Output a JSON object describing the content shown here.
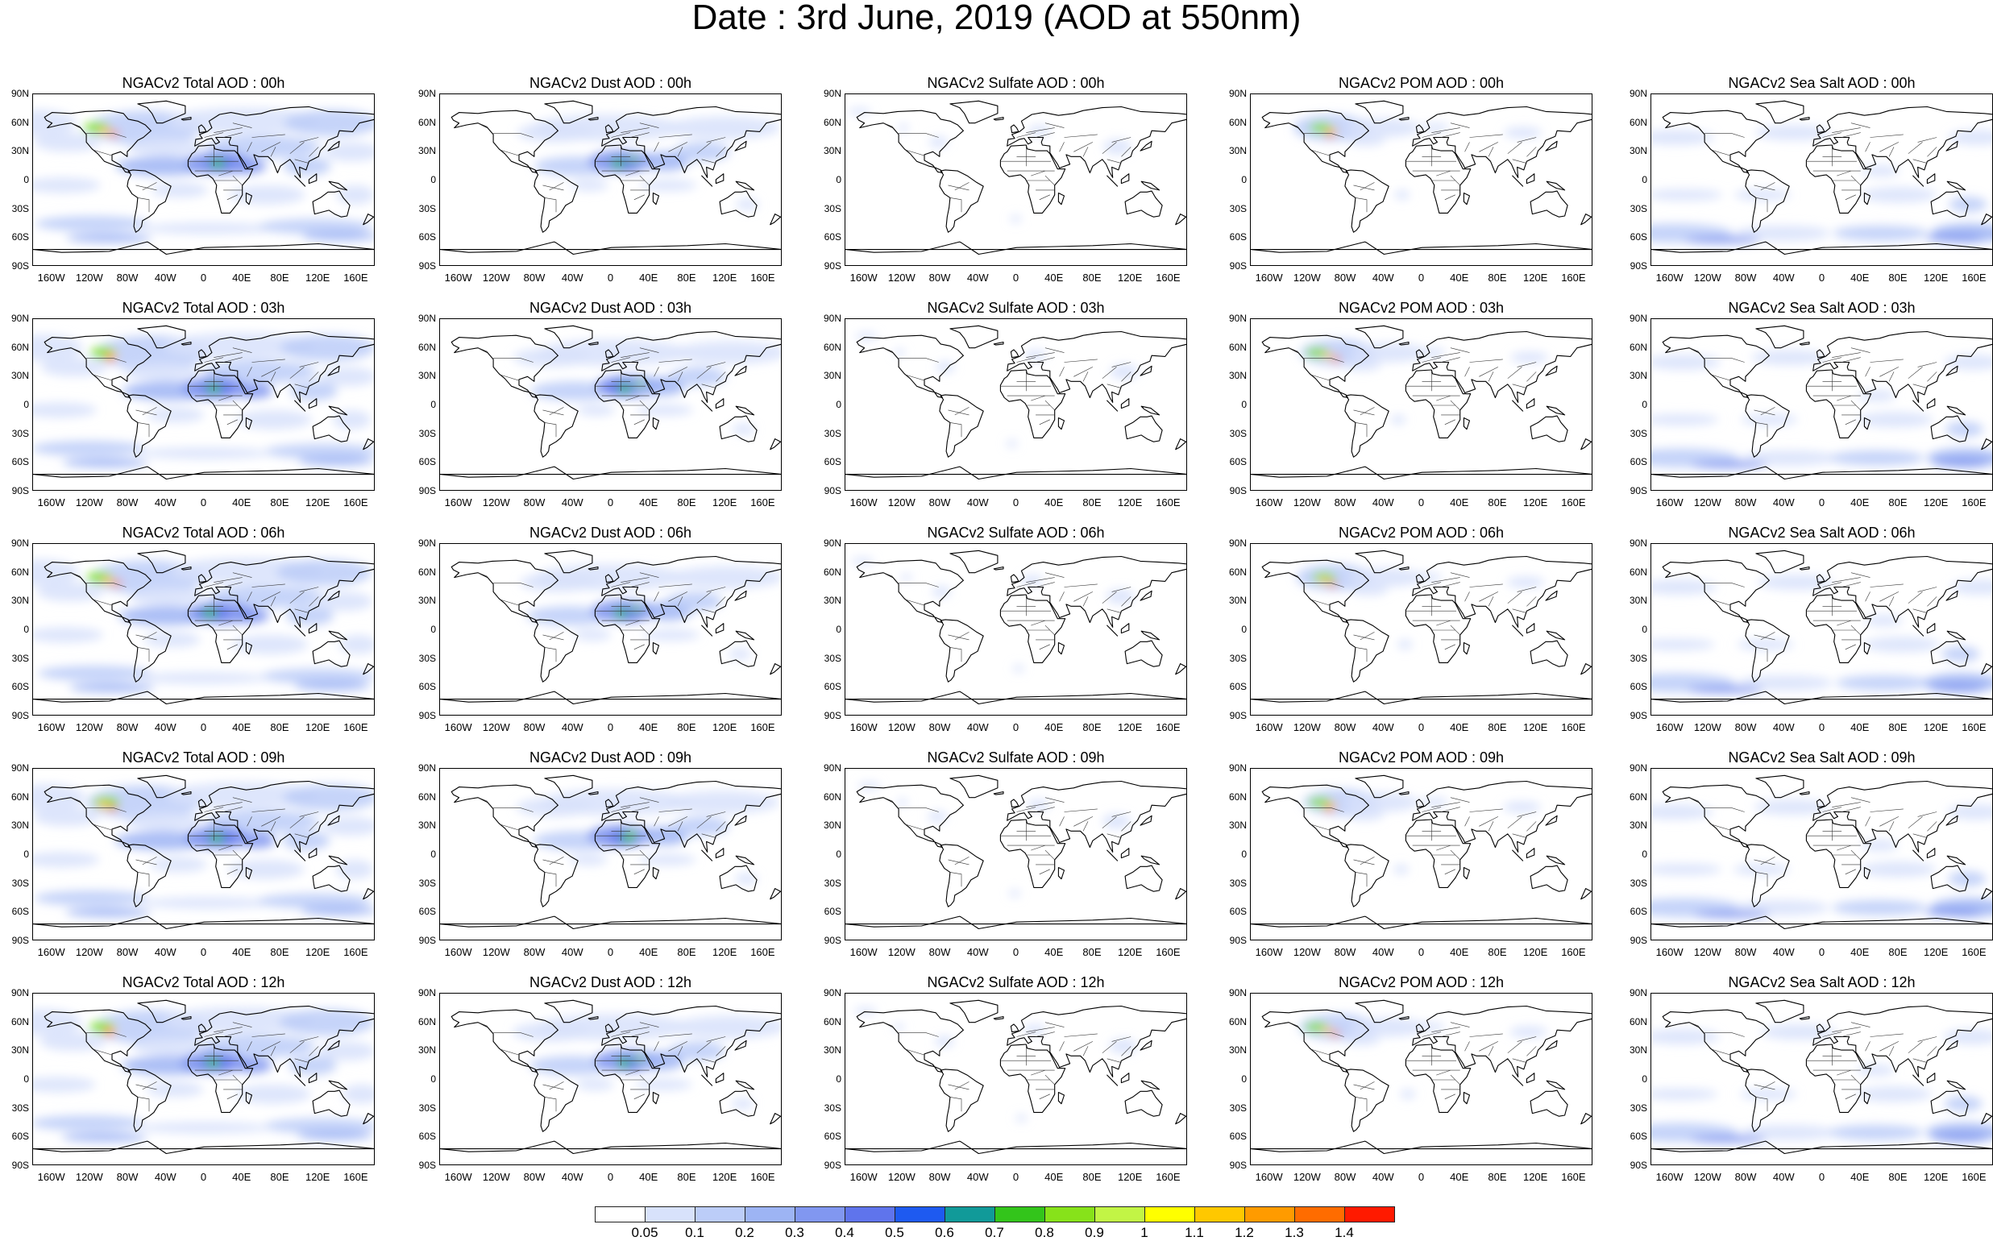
{
  "title": "Date : 3rd June, 2019 (AOD at 550nm)",
  "rows": [
    {
      "hour": "00h",
      "panels": [
        "NGACv2 Total AOD : 00h",
        "NGACv2 Dust AOD : 00h",
        "NGACv2 Sulfate AOD : 00h",
        "NGACv2 POM AOD : 00h",
        "NGACv2 Sea Salt AOD : 00h"
      ]
    },
    {
      "hour": "03h",
      "panels": [
        "NGACv2 Total AOD : 03h",
        "NGACv2 Dust AOD : 03h",
        "NGACv2 Sulfate AOD : 03h",
        "NGACv2 POM AOD : 03h",
        "NGACv2 Sea Salt AOD : 03h"
      ]
    },
    {
      "hour": "06h",
      "panels": [
        "NGACv2 Total AOD : 06h",
        "NGACv2 Dust AOD : 06h",
        "NGACv2 Sulfate AOD : 06h",
        "NGACv2 POM AOD : 06h",
        "NGACv2 Sea Salt AOD : 06h"
      ]
    },
    {
      "hour": "09h",
      "panels": [
        "NGACv2 Total AOD : 09h",
        "NGACv2 Dust AOD : 09h",
        "NGACv2 Sulfate AOD : 09h",
        "NGACv2 POM AOD : 09h",
        "NGACv2 Sea Salt  AOD : 09h"
      ]
    },
    {
      "hour": "12h",
      "panels": [
        "NGACv2 Total AOD  : 12h",
        "NGACv2 Dust AOD : 12h",
        "NGACv2 Sulfate AOD : 12h",
        "NGACv2 POM  AOD : 12h",
        "NGACv2 Sea Salt  AOD : 12h"
      ]
    }
  ],
  "species": [
    "total",
    "dust",
    "sulfate",
    "pom",
    "seasalt"
  ],
  "lat_ticks": [
    "90N",
    "60N",
    "30N",
    "0",
    "30S",
    "60S",
    "90S"
  ],
  "lon_ticks": [
    "160W",
    "120W",
    "80W",
    "40W",
    "0",
    "40E",
    "80E",
    "120E",
    "160E"
  ],
  "colorbar": {
    "colors": [
      "#ffffff",
      "#d8e2fb",
      "#bccdf8",
      "#9db4f4",
      "#8197f0",
      "#5f74ec",
      "#1e5af0",
      "#119a99",
      "#33c51b",
      "#87e21a",
      "#c2f545",
      "#ffff00",
      "#ffc800",
      "#ff9b00",
      "#ff6c00",
      "#ff1a00"
    ],
    "labels": [
      "0.05",
      "0.1",
      "0.2",
      "0.3",
      "0.4",
      "0.5",
      "0.6",
      "0.7",
      "0.8",
      "0.9",
      "1",
      "1.1",
      "1.2",
      "1.3",
      "1.4"
    ]
  }
}
